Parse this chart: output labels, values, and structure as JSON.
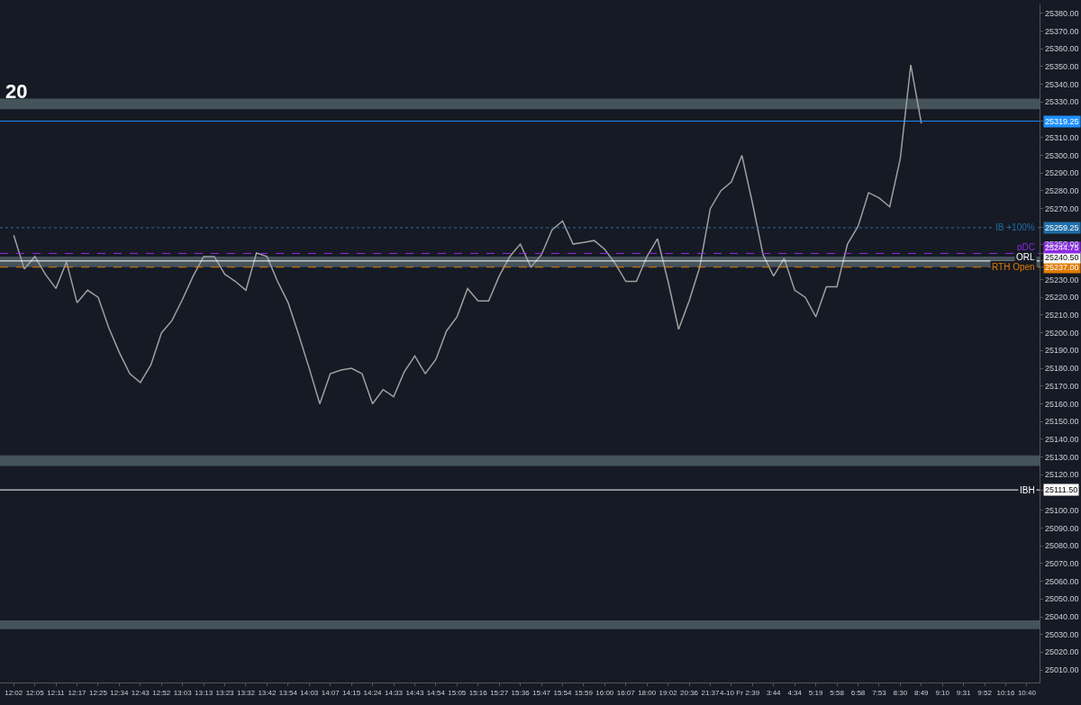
{
  "chart_data": {
    "type": "line",
    "title": "20",
    "categories": [
      "12:02",
      null,
      "12:05",
      null,
      "12:11",
      null,
      "12:17",
      null,
      "12:25",
      null,
      "12:34",
      null,
      "12:43",
      null,
      "12:52",
      null,
      "13:03",
      null,
      "13:13",
      null,
      "13:23",
      null,
      "13:32",
      null,
      "13:42",
      null,
      "13:54",
      null,
      "14:03",
      null,
      "14:07",
      null,
      "14:15",
      null,
      "14:24",
      null,
      "14:33",
      null,
      "14:43",
      null,
      "14:54",
      null,
      "15:05",
      null,
      "15:16",
      null,
      "15:27",
      null,
      "15:36",
      null,
      "15:47",
      null,
      "15:54",
      null,
      "15:59",
      null,
      "16:00",
      null,
      "16:07",
      null,
      "18:00",
      null,
      "19:02",
      null,
      "20:36",
      null,
      "21:37",
      null,
      "4-10 Fr",
      null,
      "2:39",
      null,
      "3:44",
      null,
      "4:34",
      null,
      "5:19",
      null,
      "5:58",
      null,
      "6:58",
      null,
      "7:53",
      null,
      "8:30",
      null,
      "8:49",
      null,
      "9:10",
      null,
      "9:31",
      null,
      "9:52",
      null,
      "10:16",
      null,
      "10:40",
      null
    ],
    "ylim": [
      25003,
      25385
    ],
    "yticks": [
      {
        "value": 25010,
        "label": "25010.00"
      },
      {
        "value": 25020,
        "label": "25020.00"
      },
      {
        "value": 25030,
        "label": "25030.00"
      },
      {
        "value": 25040,
        "label": "25040.00"
      },
      {
        "value": 25050,
        "label": "25050.00"
      },
      {
        "value": 25060,
        "label": "25060.00"
      },
      {
        "value": 25070,
        "label": "25070.00"
      },
      {
        "value": 25080,
        "label": "25080.00"
      },
      {
        "value": 25090,
        "label": "25090.00"
      },
      {
        "value": 25100,
        "label": "25100.00"
      },
      {
        "value": 25111.5,
        "label": "25111.50"
      },
      {
        "value": 25120,
        "label": "25120.00"
      },
      {
        "value": 25130,
        "label": "25130.00"
      },
      {
        "value": 25140,
        "label": "25140.00"
      },
      {
        "value": 25150,
        "label": "25150.00"
      },
      {
        "value": 25160,
        "label": "25160.00"
      },
      {
        "value": 25170,
        "label": "25170.00"
      },
      {
        "value": 25180,
        "label": "25180.00"
      },
      {
        "value": 25190,
        "label": "25190.00"
      },
      {
        "value": 25200,
        "label": "25200.00"
      },
      {
        "value": 25210,
        "label": "25210.00"
      },
      {
        "value": 25220,
        "label": "25220.00"
      },
      {
        "value": 25230,
        "label": "25230.00"
      },
      {
        "value": 25237,
        "label": "25237.00"
      },
      {
        "value": 25240.5,
        "label": "25240.50"
      },
      {
        "value": 25244.75,
        "label": "25244.75"
      },
      {
        "value": 25250,
        "label": "25250.00"
      },
      {
        "value": 25259.25,
        "label": "25259.25"
      },
      {
        "value": 25270,
        "label": "25270.00"
      },
      {
        "value": 25280,
        "label": "25280.00"
      },
      {
        "value": 25290,
        "label": "25290.00"
      },
      {
        "value": 25300,
        "label": "25300.00"
      },
      {
        "value": 25310,
        "label": "25310.00"
      },
      {
        "value": 25319.25,
        "label": "25319.25"
      },
      {
        "value": 25330,
        "label": "25330.00"
      },
      {
        "value": 25340,
        "label": "25340.00"
      },
      {
        "value": 25350,
        "label": "25350.00"
      },
      {
        "value": 25360,
        "label": "25360.00"
      },
      {
        "value": 25370,
        "label": "25370.00"
      },
      {
        "value": 25380,
        "label": "25380.00"
      }
    ],
    "grid": false,
    "marker": "none",
    "line_style": "solid",
    "series": [
      {
        "color": "#a0a0a0",
        "values": [
          25255,
          25236,
          25243,
          25233,
          25225,
          25240,
          25217,
          25224,
          25220,
          25203,
          25189,
          25177,
          25172,
          25182,
          25200,
          25207,
          25219,
          25232,
          25243,
          25243,
          25233,
          25229,
          25224,
          25245,
          25243,
          25229,
          25217,
          25199,
          25180,
          25160,
          25177,
          25179,
          25180,
          25177,
          25160,
          25168,
          25164,
          25178,
          25187,
          25177,
          25185,
          25201,
          25209,
          25225,
          25218,
          25218,
          25232,
          25243,
          25250,
          25237,
          25244,
          25258,
          25263,
          25250,
          25251,
          25252,
          25247,
          25239,
          25229,
          25229,
          25243,
          25253,
          25229,
          25202,
          25218,
          25237,
          25270,
          25280,
          25285,
          25300,
          25273,
          25244,
          25232,
          25242,
          25224,
          25220,
          25209,
          25226,
          25226,
          25250,
          25260,
          25279,
          25276,
          25271,
          25298,
          25351,
          25318,
          null,
          null,
          null,
          null,
          null,
          null,
          null,
          null,
          null,
          null,
          null
        ]
      }
    ],
    "ref_lines": [
      {
        "axis": "y",
        "value": 25319.25,
        "label": null,
        "color": "#1e90ff"
      },
      {
        "axis": "y",
        "value": 25259.25,
        "label": "IB +100%",
        "color": "#1f6fa8",
        "line_style": "dotted"
      },
      {
        "axis": "y",
        "value": 25244.75,
        "label": "pDC",
        "color": "#8a2be2",
        "line_style": "dashed"
      },
      {
        "axis": "y",
        "value": 25240.5,
        "label": "ORL",
        "color": "#ffffff"
      },
      {
        "axis": "y",
        "value": 25237,
        "label": "RTH Open",
        "color": "#e07b00",
        "line_style": "dashed"
      },
      {
        "axis": "y",
        "value": 25111.5,
        "label": "IBH",
        "color": "#ffffff"
      }
    ],
    "bands": [
      {
        "axis": "y",
        "from": 25326,
        "to": 25332,
        "label": null,
        "color": "#4a5a60"
      },
      {
        "axis": "y",
        "from": 25237,
        "to": 25243,
        "label": null,
        "color": "#4a5a60"
      },
      {
        "axis": "y",
        "from": 25125,
        "to": 25131,
        "label": null,
        "color": "#4a5a60"
      },
      {
        "axis": "y",
        "from": 25033,
        "to": 25038,
        "label": null,
        "color": "#4a5a60"
      }
    ]
  }
}
